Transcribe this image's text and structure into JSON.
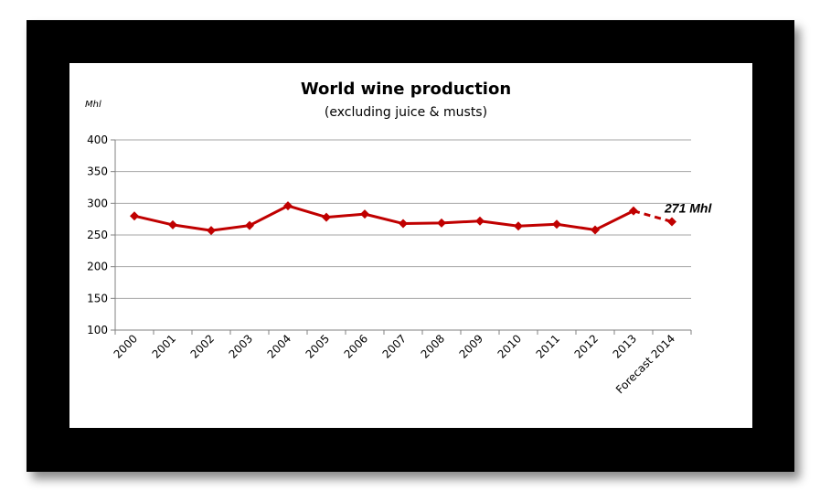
{
  "chart_data": {
    "type": "line",
    "title": "World wine production",
    "subtitle": "(excluding juice & musts)",
    "unit_label": "Mhl",
    "categories": [
      "2000",
      "2001",
      "2002",
      "2003",
      "2004",
      "2005",
      "2006",
      "2007",
      "2008",
      "2009",
      "2010",
      "2011",
      "2012",
      "2013",
      "Forecast 2014"
    ],
    "series": [
      {
        "values": [
          280,
          266,
          257,
          265,
          296,
          278,
          283,
          268,
          269,
          272,
          264,
          267,
          258,
          288,
          271
        ],
        "color": "#C00000",
        "forecast_from_index": 13
      }
    ],
    "ylim": [
      100,
      400
    ],
    "yticks": [
      100,
      150,
      200,
      250,
      300,
      350,
      400
    ],
    "grid": true,
    "annotation": {
      "text": "271 Mhl",
      "category": "Forecast 2014"
    }
  }
}
